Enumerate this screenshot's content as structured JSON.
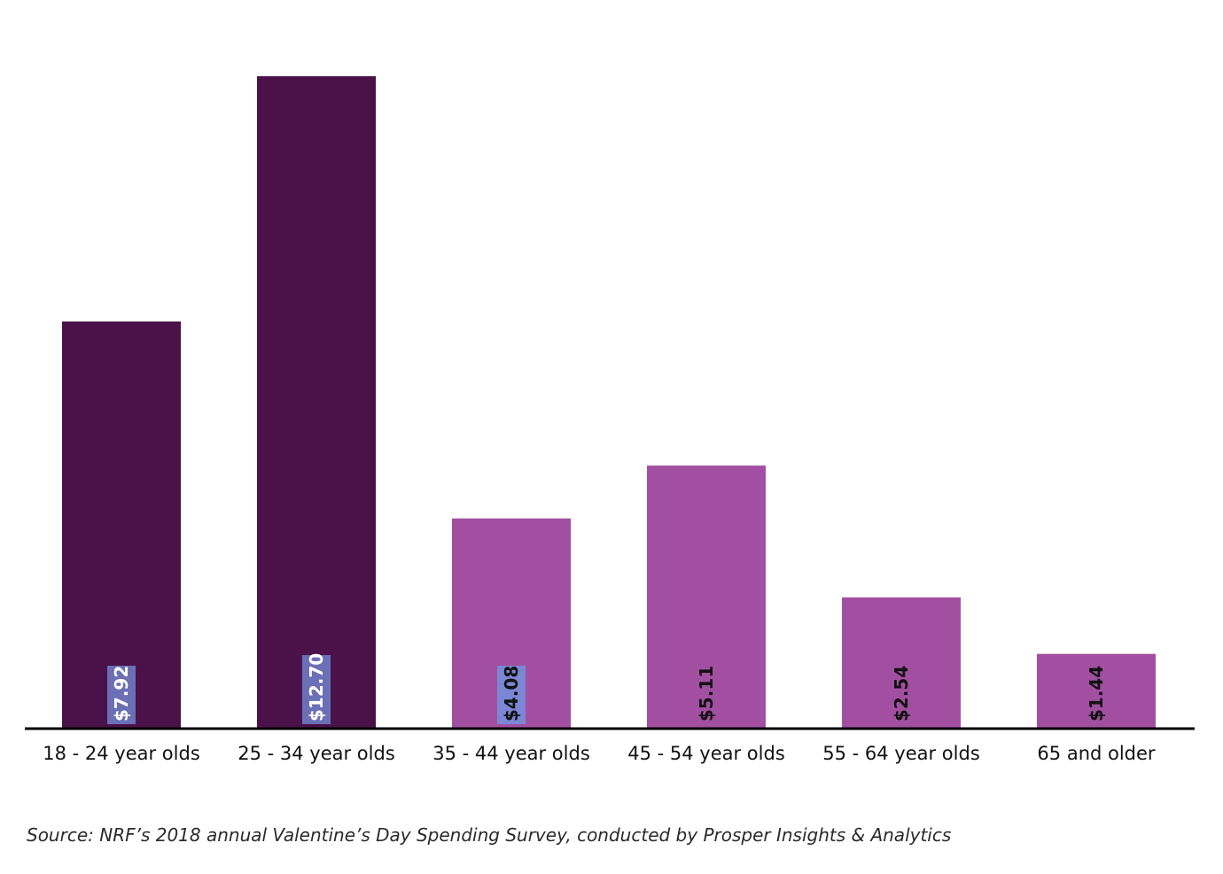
{
  "chart_data": {
    "type": "bar",
    "categories": [
      "18 - 24 year olds",
      "25 - 34 year olds",
      "35 - 44 year olds",
      "45 - 54 year olds",
      "55 - 64 year olds",
      "65 and older"
    ],
    "values": [
      7.92,
      12.7,
      4.08,
      5.11,
      2.54,
      1.44
    ],
    "value_labels": [
      "$7.92",
      "$12.70",
      "$4.08",
      "$5.11",
      "$2.54",
      "$1.44"
    ],
    "ylim": [
      0,
      12.7
    ],
    "grid": false,
    "legend": "none",
    "colors": [
      "#4a1248",
      "#4a1248",
      "#a24fa2",
      "#a24fa2",
      "#a24fa2",
      "#a24fa2"
    ],
    "label_backgrounds": [
      "#6b6fb5",
      "#6b6fb5",
      "#7b86d4",
      null,
      null,
      null
    ],
    "label_text_colors": [
      "#ffffff",
      "#ffffff",
      "#111111",
      "#111111",
      "#111111",
      "#111111"
    ]
  },
  "source": "Source: NRF’s 2018 annual Valentine’s Day Spending Survey, conducted by Prosper Insights & Analytics"
}
